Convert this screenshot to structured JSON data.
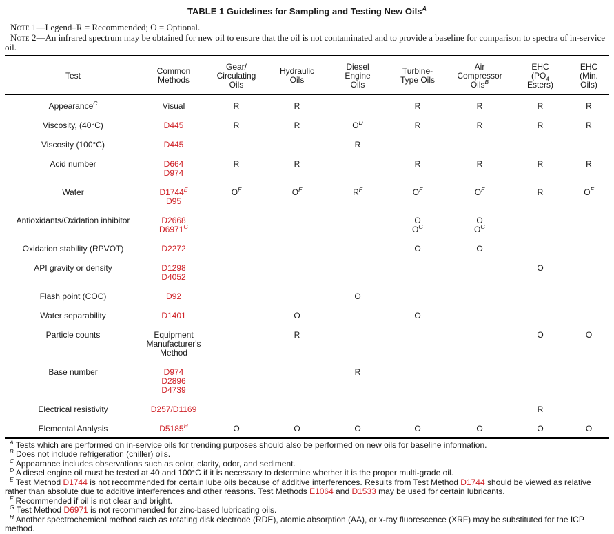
{
  "title": "TABLE 1 Guidelines for Sampling and Testing New Oils",
  "title_sup": "A",
  "notes": [
    {
      "label_word": "Note",
      "label_num": "1",
      "text": "—Legend–R = Recommended; O = Optional."
    },
    {
      "label_word": "Note",
      "label_num": "2",
      "text": "—An infrared spectrum may be obtained for new oil to ensure that the oil is not contaminated and to provide a baseline for comparison to spectra of in-service oil."
    }
  ],
  "legend": {
    "R": "Recommended",
    "O": "Optional"
  },
  "colors": {
    "method_red": "#cf2026",
    "text": "#1a1a1a"
  },
  "table": {
    "columns": [
      "Test",
      "Common\nMethods",
      "Gear/\nCirculating\nOils",
      "Hydraulic\nOils",
      "Diesel\nEngine\nOils",
      "Turbine-\nType Oils",
      "Air\nCompressor\nOils^{B}",
      "EHC\n(PO_{4}\nEsters)",
      "EHC\n(Min.\nOils)"
    ],
    "rows": [
      {
        "test": "Appearance^{C}",
        "methods": [
          {
            "text": "Visual",
            "red": false
          }
        ],
        "values": [
          "R",
          "R",
          "",
          "R",
          "R",
          "R",
          "R"
        ]
      },
      {
        "test": "Viscosity, (40°C)",
        "methods": [
          {
            "text": "D445",
            "red": true
          }
        ],
        "values": [
          "R",
          "R",
          "O^{D}",
          "R",
          "R",
          "R",
          "R"
        ]
      },
      {
        "test": "Viscosity (100°C)",
        "methods": [
          {
            "text": "D445",
            "red": true
          }
        ],
        "values": [
          "",
          "",
          "R",
          "",
          "",
          "",
          ""
        ]
      },
      {
        "test": "Acid number",
        "methods": [
          {
            "text": "D664",
            "red": true
          },
          {
            "text": "D974",
            "red": true
          }
        ],
        "values": [
          "R",
          "R",
          "",
          "R",
          "R",
          "R",
          "R"
        ]
      },
      {
        "test": "Water",
        "methods": [
          {
            "text": "D1744^{E}",
            "red": true
          },
          {
            "text": "D95",
            "red": true
          }
        ],
        "values": [
          "O^{F}",
          "O^{F}",
          "R^{F}",
          "O^{F}",
          "O^{F}",
          "R",
          "O^{F}"
        ]
      },
      {
        "test": "Antioxidants/Oxidation inhibitor",
        "methods": [
          {
            "text": "D2668",
            "red": true
          },
          {
            "text": "D6971^{G}",
            "red": true
          }
        ],
        "values": [
          "",
          "",
          "",
          "O\nO^{G}",
          "O\nO^{G}",
          "",
          ""
        ]
      },
      {
        "test": "Oxidation stability (RPVOT)",
        "methods": [
          {
            "text": "D2272",
            "red": true
          }
        ],
        "values": [
          "",
          "",
          "",
          "O",
          "O",
          "",
          ""
        ]
      },
      {
        "test": "API gravity or density",
        "methods": [
          {
            "text": "D1298",
            "red": true
          },
          {
            "text": "D4052",
            "red": true
          }
        ],
        "values": [
          "",
          "",
          "",
          "",
          "",
          "O",
          ""
        ]
      },
      {
        "test": "Flash point (COC)",
        "methods": [
          {
            "text": "D92",
            "red": true
          }
        ],
        "values": [
          "",
          "",
          "O",
          "",
          "",
          "",
          ""
        ]
      },
      {
        "test": "Water separability",
        "methods": [
          {
            "text": "D1401",
            "red": true
          }
        ],
        "values": [
          "",
          "O",
          "",
          "O",
          "",
          "",
          ""
        ]
      },
      {
        "test": "Particle counts",
        "methods": [
          {
            "text": "Equipment\nManufacturer's\nMethod",
            "red": false
          }
        ],
        "values": [
          "",
          "R",
          "",
          "",
          "",
          "O",
          "O"
        ]
      },
      {
        "test": "Base number",
        "methods": [
          {
            "text": "D974",
            "red": true
          },
          {
            "text": "D2896",
            "red": true
          },
          {
            "text": "D4739",
            "red": true
          }
        ],
        "values": [
          "",
          "",
          "R",
          "",
          "",
          "",
          ""
        ]
      },
      {
        "test": "Electrical resistivity",
        "methods": [
          {
            "text": "D257/D1169",
            "red": true
          }
        ],
        "values": [
          "",
          "",
          "",
          "",
          "",
          "R",
          ""
        ]
      },
      {
        "test": "Elemental Analysis",
        "methods": [
          {
            "text": "D5185^{H}",
            "red": true
          }
        ],
        "values": [
          "O",
          "O",
          "O",
          "O",
          "O",
          "O",
          "O"
        ]
      }
    ]
  },
  "footnotes": [
    {
      "marker": "A",
      "text": "Tests which are performed on in-service oils for trending purposes should also be performed on new oils for baseline information."
    },
    {
      "marker": "B",
      "text": "Does not include refrigeration (chiller) oils."
    },
    {
      "marker": "C",
      "text": "Appearance includes observations such as color, clarity, odor, and sediment."
    },
    {
      "marker": "D",
      "text": "A diesel engine oil must be tested at 40 and 100°C if it is necessary to determine whether it is the proper multi-grade oil."
    },
    {
      "marker": "E",
      "text": "Test Method [[D1744]] is not recommended for certain lube oils because of additive interferences. Results from Test Method [[D1744]] should be viewed as relative rather than absolute due to additive interferences and other reasons. Test Methods [[E1064]] and [[D1533]] may be used for certain lubricants."
    },
    {
      "marker": "F",
      "text": "Recommended if oil is not clear and bright."
    },
    {
      "marker": "G",
      "text": "Test Method [[D6971]] is not recommended for zinc-based lubricating oils."
    },
    {
      "marker": "H",
      "text": "Another spectrochemical method such as rotating disk electrode (RDE), atomic absorption (AA), or x-ray fluorescence (XRF) may be substituted for the ICP method."
    }
  ]
}
